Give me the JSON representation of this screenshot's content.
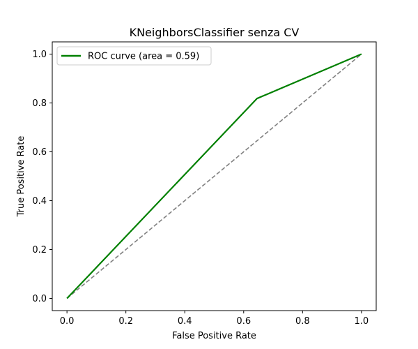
{
  "chart_data": {
    "type": "line",
    "title": "KNeighborsClassifier senza CV",
    "xlabel": "False Positive Rate",
    "ylabel": "True Positive Rate",
    "xlim": [
      -0.05,
      1.05
    ],
    "ylim": [
      -0.05,
      1.05
    ],
    "xticks": [
      "0.0",
      "0.2",
      "0.4",
      "0.6",
      "0.8",
      "1.0"
    ],
    "yticks": [
      "0.0",
      "0.2",
      "0.4",
      "0.6",
      "0.8",
      "1.0"
    ],
    "grid": false,
    "legend_position": "top-left",
    "series": [
      {
        "name": "ROC curve (area = 0.59)",
        "color": "#008000",
        "style": "solid",
        "x": [
          0.0,
          0.645,
          1.0
        ],
        "y": [
          0.0,
          0.818,
          1.0
        ]
      },
      {
        "color": "#808080",
        "style": "dashed",
        "x": [
          0.0,
          1.0
        ],
        "y": [
          0.0,
          1.0
        ]
      }
    ]
  }
}
